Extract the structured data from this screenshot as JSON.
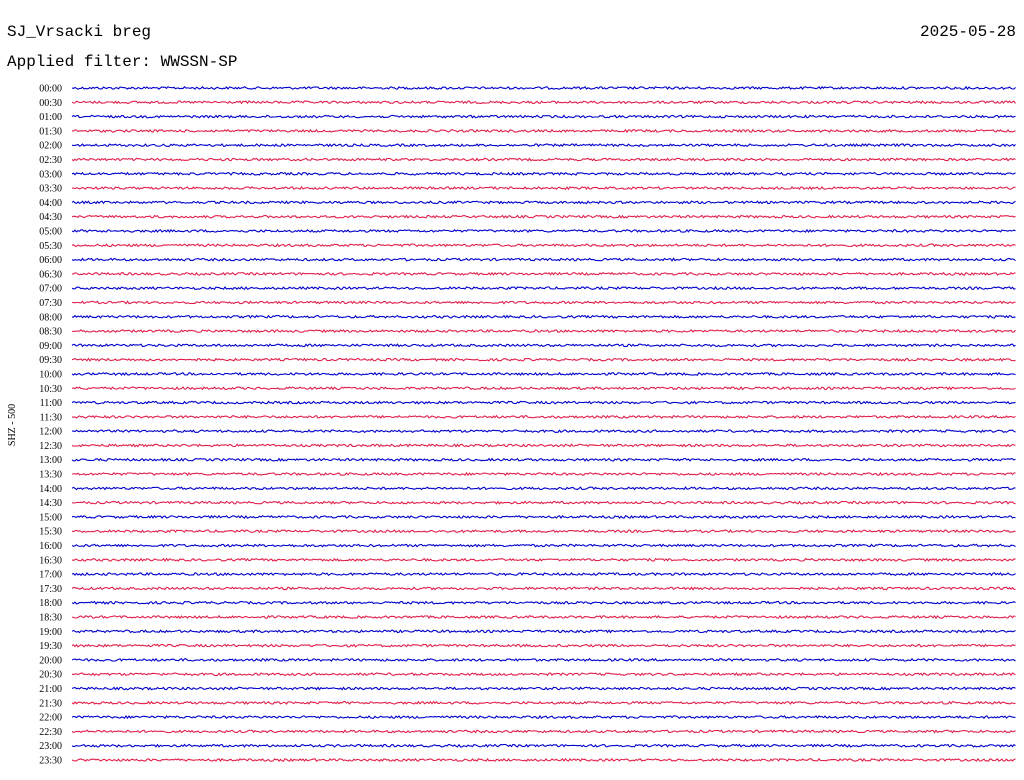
{
  "header": {
    "station": "SJ_Vrsacki breg",
    "date": "2025-05-28",
    "filter": "Applied filter: WWSSN-SP"
  },
  "axis_label": "SHZ - 500",
  "rows": [
    {
      "time": "00:00",
      "color": "#0000cc"
    },
    {
      "time": "00:30",
      "color": "#e0204a"
    },
    {
      "time": "01:00",
      "color": "#0000cc"
    },
    {
      "time": "01:30",
      "color": "#e0204a"
    },
    {
      "time": "02:00",
      "color": "#0000cc"
    },
    {
      "time": "02:30",
      "color": "#e0204a"
    },
    {
      "time": "03:00",
      "color": "#0000cc"
    },
    {
      "time": "03:30",
      "color": "#e0204a"
    },
    {
      "time": "04:00",
      "color": "#0000cc"
    },
    {
      "time": "04:30",
      "color": "#e0204a"
    },
    {
      "time": "05:00",
      "color": "#0000cc"
    },
    {
      "time": "05:30",
      "color": "#e0204a"
    },
    {
      "time": "06:00",
      "color": "#0000cc"
    },
    {
      "time": "06:30",
      "color": "#e0204a"
    },
    {
      "time": "07:00",
      "color": "#0000cc"
    },
    {
      "time": "07:30",
      "color": "#e0204a"
    },
    {
      "time": "08:00",
      "color": "#0000cc"
    },
    {
      "time": "08:30",
      "color": "#e0204a"
    },
    {
      "time": "09:00",
      "color": "#0000cc"
    },
    {
      "time": "09:30",
      "color": "#e0204a"
    },
    {
      "time": "10:00",
      "color": "#0000cc"
    },
    {
      "time": "10:30",
      "color": "#e0204a"
    },
    {
      "time": "11:00",
      "color": "#0000cc"
    },
    {
      "time": "11:30",
      "color": "#e0204a"
    },
    {
      "time": "12:00",
      "color": "#0000cc"
    },
    {
      "time": "12:30",
      "color": "#e0204a"
    },
    {
      "time": "13:00",
      "color": "#0000cc"
    },
    {
      "time": "13:30",
      "color": "#e0204a"
    },
    {
      "time": "14:00",
      "color": "#0000cc"
    },
    {
      "time": "14:30",
      "color": "#e0204a"
    },
    {
      "time": "15:00",
      "color": "#0000cc"
    },
    {
      "time": "15:30",
      "color": "#e0204a"
    },
    {
      "time": "16:00",
      "color": "#0000cc"
    },
    {
      "time": "16:30",
      "color": "#e0204a"
    },
    {
      "time": "17:00",
      "color": "#0000cc"
    },
    {
      "time": "17:30",
      "color": "#e0204a"
    },
    {
      "time": "18:00",
      "color": "#0000cc"
    },
    {
      "time": "18:30",
      "color": "#e0204a"
    },
    {
      "time": "19:00",
      "color": "#0000cc"
    },
    {
      "time": "19:30",
      "color": "#e0204a"
    },
    {
      "time": "20:00",
      "color": "#0000cc"
    },
    {
      "time": "20:30",
      "color": "#e0204a"
    },
    {
      "time": "21:00",
      "color": "#0000cc"
    },
    {
      "time": "21:30",
      "color": "#e0204a"
    },
    {
      "time": "22:00",
      "color": "#0000cc"
    },
    {
      "time": "22:30",
      "color": "#e0204a"
    },
    {
      "time": "23:00",
      "color": "#0000cc"
    },
    {
      "time": "23:30",
      "color": "#e0204a"
    }
  ]
}
